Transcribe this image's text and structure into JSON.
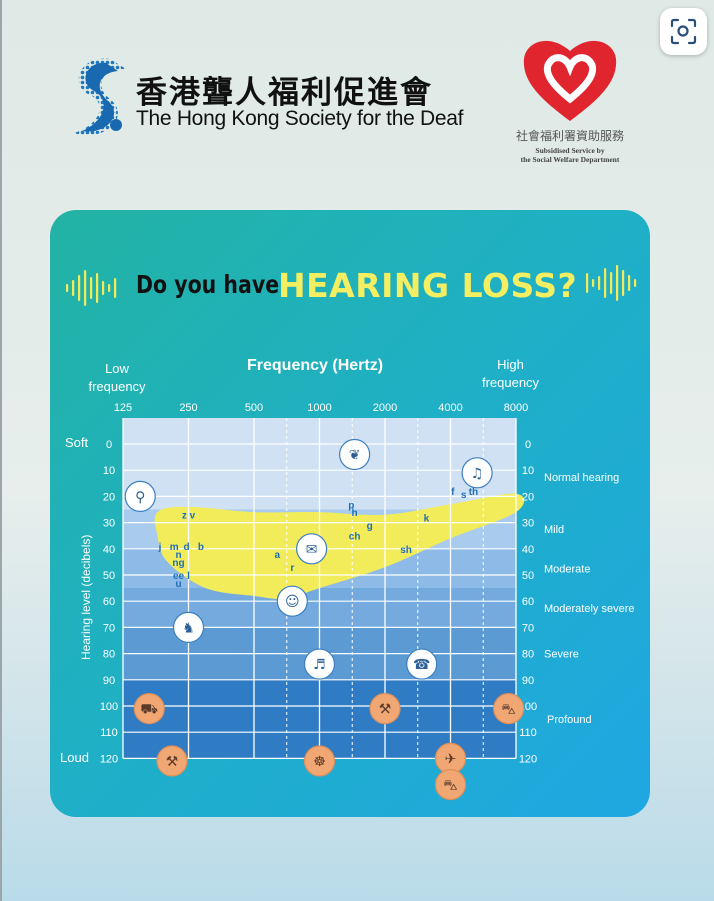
{
  "header": {
    "org_name_cn": "香港聾人福利促進會",
    "org_name_en": "The Hong Kong Society for the Deaf",
    "swd_cn": "社會福利署資助服務",
    "swd_en_line1": "Subsidised Service by",
    "swd_en_line2": "the Social Welfare Department",
    "lens_icon": "visual-search-icon"
  },
  "poster": {
    "title_prefix": "Do you have",
    "title_highlight": "HEARING LOSS?",
    "colors": {
      "card_start": "#22b3a4",
      "card_end": "#1fa7e2",
      "highlight": "#f4ee62",
      "banana": "#f2ec5a",
      "icon_bubble": "#f0a773"
    }
  },
  "chart_data": {
    "type": "audiogram",
    "title": "Frequency (Hertz)",
    "x_low_label": "Low frequency",
    "x_high_label": "High frequency",
    "x_ticks": [
      "125",
      "250",
      "500",
      "1000",
      "2000",
      "4000",
      "8000"
    ],
    "ylabel": "Hearing level (decibels)",
    "y_top_label": "Soft",
    "y_bottom_label": "Loud",
    "y_ticks": [
      0,
      10,
      20,
      30,
      40,
      50,
      60,
      70,
      80,
      90,
      100,
      110,
      120
    ],
    "ylim": [
      0,
      120
    ],
    "x_scale": "log2",
    "severity_bands": [
      {
        "label": "Normal hearing",
        "from": 0,
        "to": 25,
        "color": "#cfe1f3"
      },
      {
        "label": "Mild",
        "from": 25,
        "to": 40,
        "color": "#a8cbee"
      },
      {
        "label": "Moderate",
        "from": 40,
        "to": 55,
        "color": "#8dbae6"
      },
      {
        "label": "Moderately severe",
        "from": 55,
        "to": 70,
        "color": "#74aade"
      },
      {
        "label": "Severe",
        "from": 70,
        "to": 90,
        "color": "#5c9ad4"
      },
      {
        "label": "Profound",
        "from": 90,
        "to": 120,
        "color": "#2f7cc4"
      }
    ],
    "speech_banana": {
      "upper": [
        [
          180,
          26
        ],
        [
          250,
          24
        ],
        [
          500,
          26
        ],
        [
          1000,
          26
        ],
        [
          2000,
          27
        ],
        [
          4000,
          23
        ],
        [
          8000,
          19
        ]
      ],
      "lower": [
        [
          8000,
          26
        ],
        [
          4000,
          36
        ],
        [
          2000,
          47
        ],
        [
          1000,
          55
        ],
        [
          700,
          59
        ],
        [
          500,
          58
        ],
        [
          300,
          55
        ],
        [
          200,
          45
        ],
        [
          180,
          35
        ]
      ]
    },
    "phonemes": [
      {
        "text": "z v",
        "f": 250,
        "db": 27
      },
      {
        "text": "j",
        "f": 185,
        "db": 39
      },
      {
        "text": "m",
        "f": 215,
        "db": 39
      },
      {
        "text": "d",
        "f": 245,
        "db": 39
      },
      {
        "text": "b",
        "f": 285,
        "db": 39
      },
      {
        "text": "n",
        "f": 225,
        "db": 42
      },
      {
        "text": "ng",
        "f": 225,
        "db": 45
      },
      {
        "text": "ee",
        "f": 225,
        "db": 50
      },
      {
        "text": "l",
        "f": 250,
        "db": 50
      },
      {
        "text": "u",
        "f": 225,
        "db": 53
      },
      {
        "text": "a",
        "f": 640,
        "db": 42
      },
      {
        "text": "r",
        "f": 750,
        "db": 47
      },
      {
        "text": "p",
        "f": 1400,
        "db": 23
      },
      {
        "text": "h",
        "f": 1450,
        "db": 26
      },
      {
        "text": "ch",
        "f": 1450,
        "db": 35
      },
      {
        "text": "g",
        "f": 1700,
        "db": 31
      },
      {
        "text": "sh",
        "f": 2500,
        "db": 40
      },
      {
        "text": "k",
        "f": 3100,
        "db": 28
      },
      {
        "text": "f",
        "f": 4100,
        "db": 18
      },
      {
        "text": "s",
        "f": 4600,
        "db": 19
      },
      {
        "text": "th",
        "f": 5100,
        "db": 18
      }
    ],
    "sounds": [
      {
        "name": "leaves-rustling-icon",
        "f": 1450,
        "db": 4,
        "kind": "soft",
        "glyph": "❦"
      },
      {
        "name": "bird-chirping-icon",
        "f": 5300,
        "db": 11,
        "kind": "soft",
        "glyph": "♫"
      },
      {
        "name": "dripping-tap-icon",
        "f": 150,
        "db": 20,
        "kind": "soft",
        "glyph": "⚲"
      },
      {
        "name": "conversation-icon",
        "f": 920,
        "db": 40,
        "kind": "soft",
        "glyph": "✉"
      },
      {
        "name": "baby-crying-icon",
        "f": 750,
        "db": 60,
        "kind": "soft",
        "glyph": "☺"
      },
      {
        "name": "dog-barking-icon",
        "f": 250,
        "db": 70,
        "kind": "soft",
        "glyph": "♞"
      },
      {
        "name": "piano-icon",
        "f": 1000,
        "db": 84,
        "kind": "soft",
        "glyph": "♬"
      },
      {
        "name": "telephone-ringing-icon",
        "f": 2950,
        "db": 84,
        "kind": "soft",
        "glyph": "☎"
      },
      {
        "name": "truck-icon",
        "f": 165,
        "db": 101,
        "kind": "loud",
        "glyph": "⛟"
      },
      {
        "name": "chainsaw-icon",
        "f": 2000,
        "db": 101,
        "kind": "loud",
        "glyph": "⚒"
      },
      {
        "name": "motorcycle-icon",
        "f": 7400,
        "db": 101,
        "kind": "loud",
        "glyph": "⛍"
      },
      {
        "name": "jackhammer-icon",
        "f": 210,
        "db": 121,
        "kind": "loud",
        "glyph": "⚒"
      },
      {
        "name": "drums-icon",
        "f": 1000,
        "db": 121,
        "kind": "loud",
        "glyph": "☸"
      },
      {
        "name": "airplane-icon",
        "f": 4000,
        "db": 120,
        "kind": "loud",
        "glyph": "✈"
      },
      {
        "name": "car-icon",
        "f": 4000,
        "db": 130,
        "kind": "loud",
        "glyph": "⛍"
      }
    ]
  }
}
